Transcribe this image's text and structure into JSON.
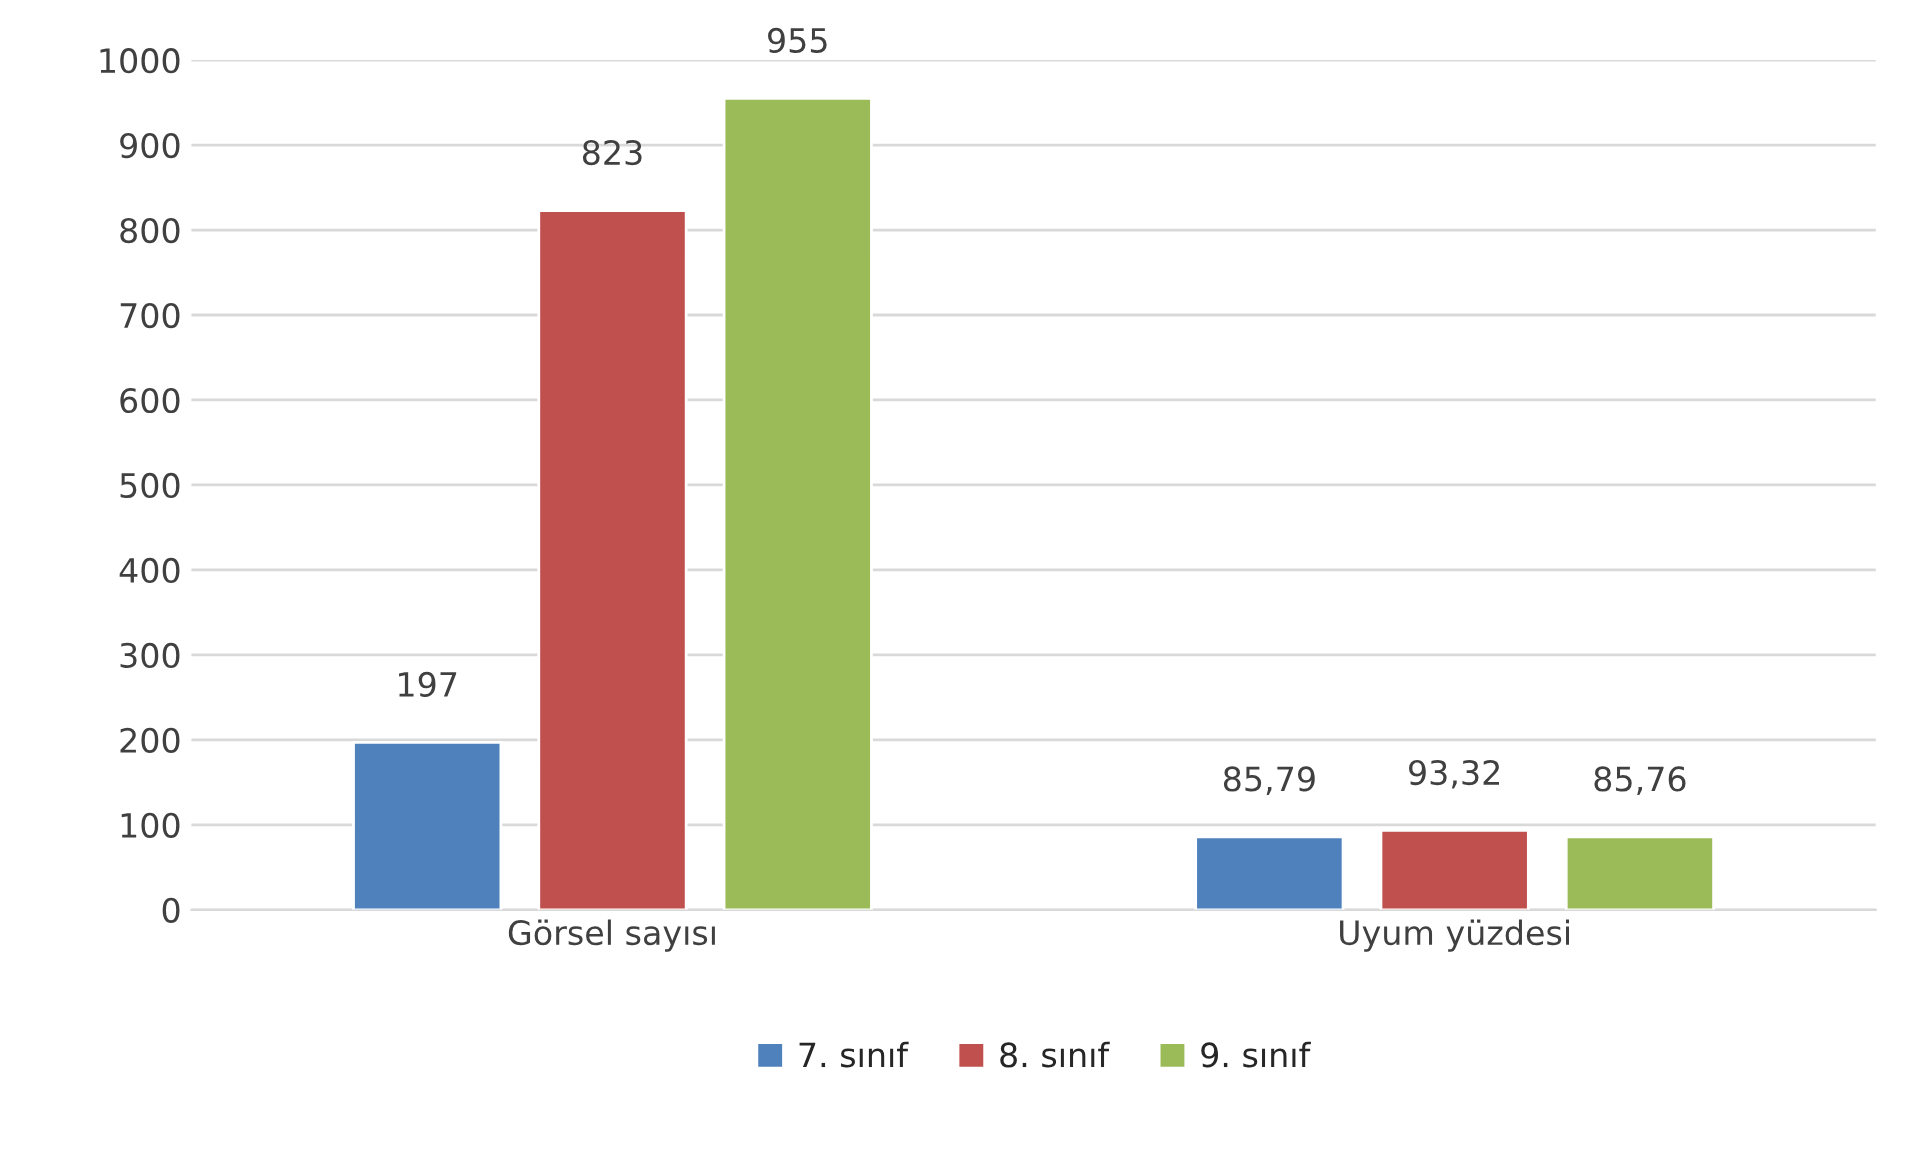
{
  "chart_data": {
    "type": "bar",
    "categories": [
      "Görsel sayısı",
      "Uyum yüzdesi"
    ],
    "series": [
      {
        "name": "7. sınıf",
        "color": "#4f81bd",
        "values": [
          197,
          85.79
        ],
        "value_labels": [
          "197",
          "85,79"
        ]
      },
      {
        "name": "8. sınıf",
        "color": "#c0504d",
        "values": [
          823,
          93.32
        ],
        "value_labels": [
          "823",
          "93,32"
        ]
      },
      {
        "name": "9. sınıf",
        "color": "#9bbb59",
        "values": [
          955,
          85.76
        ],
        "value_labels": [
          "955",
          "85,76"
        ]
      }
    ],
    "ylim": [
      0,
      1000
    ],
    "yticks": [
      0,
      100,
      200,
      300,
      400,
      500,
      600,
      700,
      800,
      900,
      1000
    ],
    "grid": "y",
    "legend": "bottom"
  }
}
